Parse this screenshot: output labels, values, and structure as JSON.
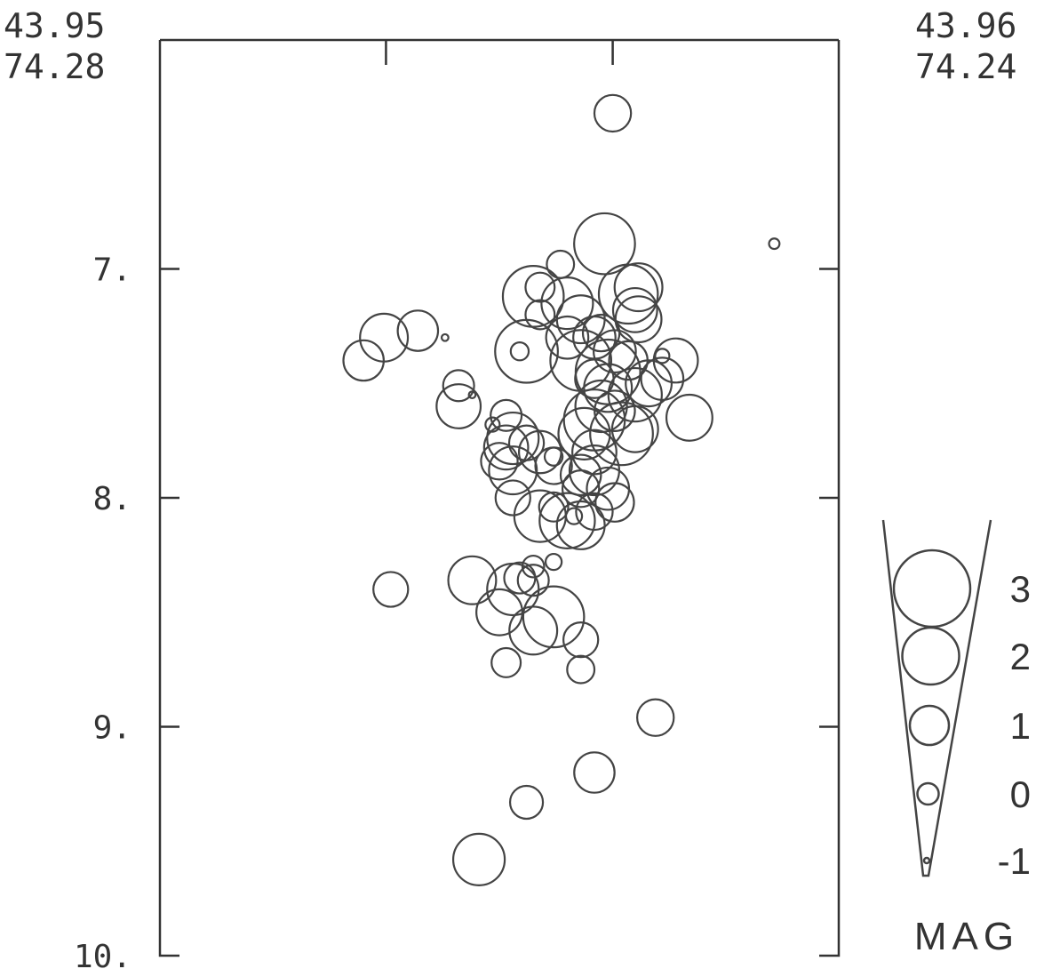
{
  "chart_data": {
    "type": "scatter",
    "title": "",
    "xlabel": "",
    "ylabel": "",
    "corner_labels": {
      "left": [
        "43.95",
        "74.28"
      ],
      "right": [
        "43.96",
        "74.24"
      ]
    },
    "ylim": [
      10,
      6
    ],
    "y_ticks": [
      7,
      8,
      9,
      10
    ],
    "y_tick_labels": [
      "7.",
      "8.",
      "9.",
      "10."
    ],
    "x_ticks": [
      0.333,
      0.667
    ],
    "x_domain": [
      0,
      1
    ],
    "legend": {
      "title": "MAG",
      "entries": [
        {
          "label": "3",
          "mag": 3
        },
        {
          "label": "2",
          "mag": 2
        },
        {
          "label": "1",
          "mag": 1
        },
        {
          "label": "0",
          "mag": 0
        },
        {
          "label": "-1",
          "mag": -1
        }
      ]
    },
    "points": [
      {
        "x": 0.667,
        "y": 6.32,
        "mag": 0.6
      },
      {
        "x": 0.655,
        "y": 6.89,
        "mag": 1.9
      },
      {
        "x": 0.905,
        "y": 6.89,
        "mag": -0.8
      },
      {
        "x": 0.59,
        "y": 6.98,
        "mag": 0.1
      },
      {
        "x": 0.55,
        "y": 7.12,
        "mag": 1.9
      },
      {
        "x": 0.6,
        "y": 7.15,
        "mag": 1.4
      },
      {
        "x": 0.56,
        "y": 7.08,
        "mag": 0.2
      },
      {
        "x": 0.69,
        "y": 7.11,
        "mag": 1.8
      },
      {
        "x": 0.705,
        "y": 7.08,
        "mag": 1.2
      },
      {
        "x": 0.7,
        "y": 7.18,
        "mag": 1.0
      },
      {
        "x": 0.705,
        "y": 7.22,
        "mag": 1.1
      },
      {
        "x": 0.62,
        "y": 7.22,
        "mag": 1.2
      },
      {
        "x": 0.56,
        "y": 7.2,
        "mag": 0.2
      },
      {
        "x": 0.54,
        "y": 7.36,
        "mag": 2.0
      },
      {
        "x": 0.53,
        "y": 7.36,
        "mag": -0.4
      },
      {
        "x": 0.6,
        "y": 7.3,
        "mag": 0.9
      },
      {
        "x": 0.64,
        "y": 7.3,
        "mag": 0.9
      },
      {
        "x": 0.65,
        "y": 7.28,
        "mag": 0.6
      },
      {
        "x": 0.62,
        "y": 7.4,
        "mag": 1.9
      },
      {
        "x": 0.66,
        "y": 7.45,
        "mag": 2.1
      },
      {
        "x": 0.67,
        "y": 7.36,
        "mag": 0.9
      },
      {
        "x": 0.69,
        "y": 7.4,
        "mag": 0.7
      },
      {
        "x": 0.76,
        "y": 7.4,
        "mag": 1.0
      },
      {
        "x": 0.74,
        "y": 7.38,
        "mag": -0.6
      },
      {
        "x": 0.74,
        "y": 7.48,
        "mag": 0.9
      },
      {
        "x": 0.72,
        "y": 7.5,
        "mag": 1.1
      },
      {
        "x": 0.64,
        "y": 7.48,
        "mag": 0.7
      },
      {
        "x": 0.66,
        "y": 7.52,
        "mag": 1.2
      },
      {
        "x": 0.7,
        "y": 7.55,
        "mag": 1.5
      },
      {
        "x": 0.65,
        "y": 7.6,
        "mag": 1.4
      },
      {
        "x": 0.67,
        "y": 7.62,
        "mag": 0.8
      },
      {
        "x": 0.64,
        "y": 7.66,
        "mag": 1.9
      },
      {
        "x": 0.68,
        "y": 7.72,
        "mag": 2.0
      },
      {
        "x": 0.625,
        "y": 7.72,
        "mag": 1.4
      },
      {
        "x": 0.7,
        "y": 7.7,
        "mag": 1.1
      },
      {
        "x": 0.78,
        "y": 7.65,
        "mag": 1.1
      },
      {
        "x": 0.64,
        "y": 7.8,
        "mag": 1.0
      },
      {
        "x": 0.64,
        "y": 7.88,
        "mag": 1.3
      },
      {
        "x": 0.62,
        "y": 7.9,
        "mag": 0.8
      },
      {
        "x": 0.62,
        "y": 7.96,
        "mag": 0.6
      },
      {
        "x": 0.66,
        "y": 7.96,
        "mag": 0.9
      },
      {
        "x": 0.67,
        "y": 8.02,
        "mag": 0.7
      },
      {
        "x": 0.56,
        "y": 7.8,
        "mag": 0.9
      },
      {
        "x": 0.58,
        "y": 7.86,
        "mag": 0.6
      },
      {
        "x": 0.58,
        "y": 7.82,
        "mag": -0.4
      },
      {
        "x": 0.51,
        "y": 7.78,
        "mag": 1.0
      },
      {
        "x": 0.5,
        "y": 7.84,
        "mag": 0.6
      },
      {
        "x": 0.52,
        "y": 7.88,
        "mag": 1.2
      },
      {
        "x": 0.52,
        "y": 7.74,
        "mag": 1.4
      },
      {
        "x": 0.49,
        "y": 7.68,
        "mag": -0.6
      },
      {
        "x": 0.44,
        "y": 7.6,
        "mag": 1.0
      },
      {
        "x": 0.46,
        "y": 7.55,
        "mag": -1.0
      },
      {
        "x": 0.54,
        "y": 7.76,
        "mag": 0.5
      },
      {
        "x": 0.51,
        "y": 7.64,
        "mag": 0.3
      },
      {
        "x": 0.52,
        "y": 8.0,
        "mag": 0.5
      },
      {
        "x": 0.56,
        "y": 8.08,
        "mag": 1.4
      },
      {
        "x": 0.6,
        "y": 8.1,
        "mag": 1.6
      },
      {
        "x": 0.62,
        "y": 8.12,
        "mag": 1.2
      },
      {
        "x": 0.61,
        "y": 8.08,
        "mag": -0.5
      },
      {
        "x": 0.58,
        "y": 8.04,
        "mag": 0.2
      },
      {
        "x": 0.64,
        "y": 8.06,
        "mag": 0.6
      },
      {
        "x": 0.33,
        "y": 7.3,
        "mag": 1.2
      },
      {
        "x": 0.3,
        "y": 7.4,
        "mag": 0.8
      },
      {
        "x": 0.38,
        "y": 7.27,
        "mag": 0.8
      },
      {
        "x": 0.42,
        "y": 7.3,
        "mag": -1.0
      },
      {
        "x": 0.44,
        "y": 7.51,
        "mag": 0.3
      },
      {
        "x": 0.34,
        "y": 8.4,
        "mag": 0.5
      },
      {
        "x": 0.46,
        "y": 8.36,
        "mag": 1.2
      },
      {
        "x": 0.52,
        "y": 8.4,
        "mag": 1.4
      },
      {
        "x": 0.53,
        "y": 8.35,
        "mag": 0.3
      },
      {
        "x": 0.55,
        "y": 8.3,
        "mag": -0.2
      },
      {
        "x": 0.55,
        "y": 8.36,
        "mag": 0.3
      },
      {
        "x": 0.58,
        "y": 8.28,
        "mag": -0.5
      },
      {
        "x": 0.5,
        "y": 8.5,
        "mag": 1.1
      },
      {
        "x": 0.55,
        "y": 8.58,
        "mag": 1.2
      },
      {
        "x": 0.58,
        "y": 8.52,
        "mag": 1.9
      },
      {
        "x": 0.62,
        "y": 8.62,
        "mag": 0.5
      },
      {
        "x": 0.51,
        "y": 8.72,
        "mag": 0.2
      },
      {
        "x": 0.62,
        "y": 8.75,
        "mag": 0.1
      },
      {
        "x": 0.73,
        "y": 8.96,
        "mag": 0.6
      },
      {
        "x": 0.64,
        "y": 9.2,
        "mag": 0.8
      },
      {
        "x": 0.54,
        "y": 9.33,
        "mag": 0.4
      },
      {
        "x": 0.47,
        "y": 9.58,
        "mag": 1.4
      }
    ]
  }
}
